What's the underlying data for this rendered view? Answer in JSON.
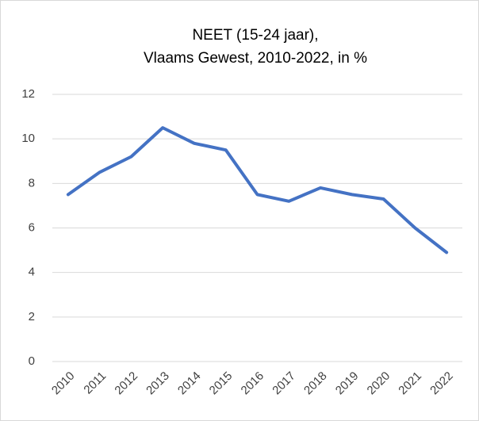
{
  "chart_data": {
    "type": "line",
    "title": [
      "NEET (15-24 jaar),",
      "Vlaams Gewest, 2010-2022, in %"
    ],
    "categories": [
      "2010",
      "2011",
      "2012",
      "2013",
      "2014",
      "2015",
      "2016",
      "2017",
      "2018",
      "2019",
      "2020",
      "2021",
      "2022"
    ],
    "values": [
      7.5,
      8.5,
      9.2,
      10.5,
      9.8,
      9.5,
      7.5,
      7.2,
      7.8,
      7.5,
      7.3,
      6.0,
      4.9
    ],
    "color": "#4472c4",
    "ylim": [
      0,
      12
    ],
    "yticks": [
      0,
      2,
      4,
      6,
      8,
      10,
      12
    ],
    "grid": true
  }
}
